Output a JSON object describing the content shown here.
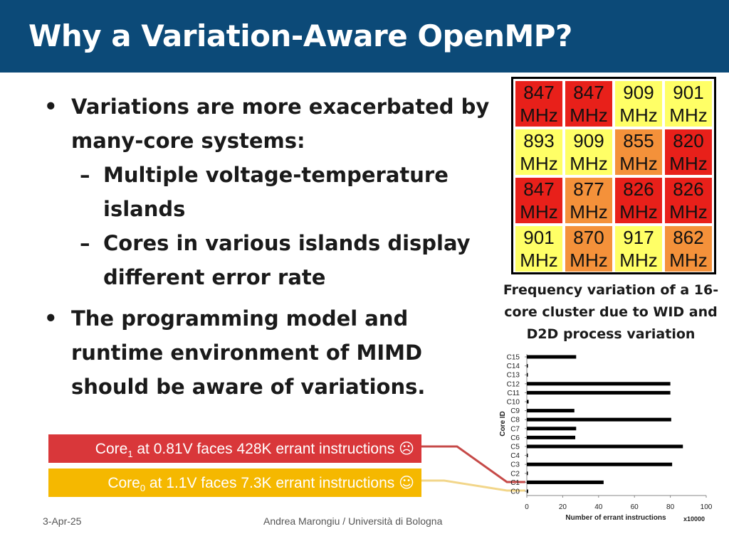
{
  "slide": {
    "title": "Why a Variation-Aware OpenMP?",
    "bullets": [
      {
        "symbol": "•",
        "text": "Variations are more exacerbated by many-core systems:"
      },
      {
        "symbol": "–",
        "text": "Multiple voltage-temperature islands"
      },
      {
        "symbol": "–",
        "text": "Cores in various islands display different error rate"
      },
      {
        "symbol": "•",
        "text": "The programming model and runtime environment of MIMD should be aware of variations."
      }
    ],
    "freq_grid": [
      {
        "value": "847",
        "unit": "MHz",
        "color": "#e8201a"
      },
      {
        "value": "847",
        "unit": "MHz",
        "color": "#e8201a"
      },
      {
        "value": "909",
        "unit": "MHz",
        "color": "#ffff66"
      },
      {
        "value": "901",
        "unit": "MHz",
        "color": "#ffff66"
      },
      {
        "value": "893",
        "unit": "MHz",
        "color": "#ffff66"
      },
      {
        "value": "909",
        "unit": "MHz",
        "color": "#ffff66"
      },
      {
        "value": "855",
        "unit": "MHz",
        "color": "#f4913a"
      },
      {
        "value": "820",
        "unit": "MHz",
        "color": "#e8201a"
      },
      {
        "value": "847",
        "unit": "MHz",
        "color": "#e8201a"
      },
      {
        "value": "877",
        "unit": "MHz",
        "color": "#f4913a"
      },
      {
        "value": "826",
        "unit": "MHz",
        "color": "#e8201a"
      },
      {
        "value": "826",
        "unit": "MHz",
        "color": "#e8201a"
      },
      {
        "value": "901",
        "unit": "MHz",
        "color": "#ffff66"
      },
      {
        "value": "870",
        "unit": "MHz",
        "color": "#f4913a"
      },
      {
        "value": "917",
        "unit": "MHz",
        "color": "#ffff66"
      },
      {
        "value": "862",
        "unit": "MHz",
        "color": "#f4913a"
      }
    ],
    "grid_caption": "Frequency variation of a 16-core cluster due to WID and D2D process variation",
    "callouts": [
      {
        "prefix": "Core",
        "sub": "1",
        "text": " at 0.81V faces 428K errant instructions ",
        "emoji": "☹",
        "color": "#d9373a"
      },
      {
        "prefix": "Core",
        "sub": "0",
        "text": " at 1.1V faces 7.3K errant instructions ",
        "emoji": "☺",
        "color": "#f5b800"
      }
    ],
    "footer": {
      "date": "3-Apr-25",
      "author": "Andrea Marongiu / Università di Bologna"
    }
  },
  "chart_data": {
    "type": "bar",
    "orientation": "horizontal",
    "categories": [
      "C0",
      "C1",
      "C2",
      "C3",
      "C4",
      "C5",
      "C6",
      "C7",
      "C8",
      "C9",
      "C10",
      "C11",
      "C12",
      "C13",
      "C14",
      "C15"
    ],
    "values": [
      0.73,
      42.8,
      0.5,
      81,
      0.5,
      87,
      27,
      27.5,
      80.5,
      26.5,
      1,
      80,
      80,
      0.5,
      0.5,
      27.5
    ],
    "xlabel": "Number of errant  instructions",
    "xscale_note": "x10000",
    "ylabel": "Core ID",
    "xlim": [
      0,
      100
    ],
    "xticks": [
      0,
      20,
      40,
      60,
      80,
      100
    ],
    "bar_color": "#000000"
  }
}
